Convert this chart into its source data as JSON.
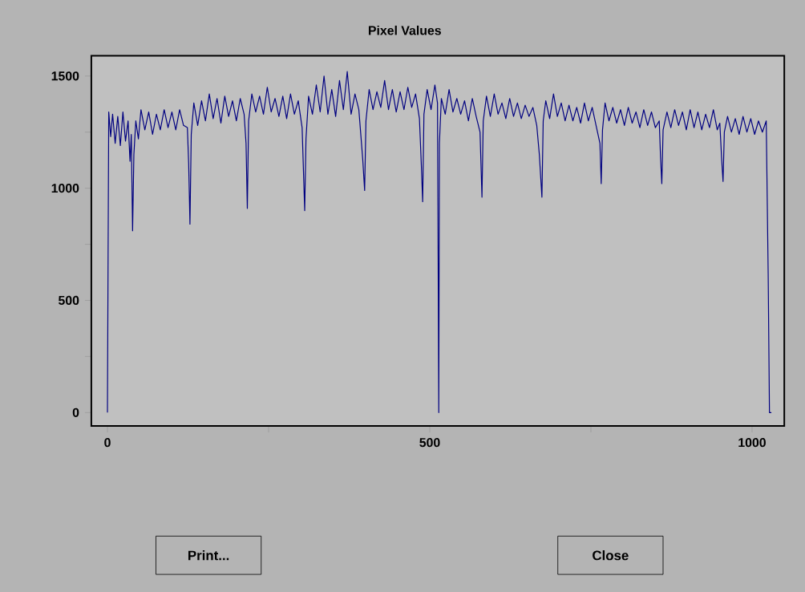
{
  "chart_data": {
    "type": "line",
    "title": "Pixel Values",
    "x": [
      0,
      1,
      2,
      5,
      8,
      12,
      16,
      20,
      24,
      28,
      32,
      35,
      37,
      39,
      41,
      44,
      48,
      52,
      58,
      64,
      70,
      76,
      82,
      88,
      94,
      100,
      106,
      112,
      118,
      124,
      126,
      128,
      130,
      134,
      140,
      146,
      152,
      158,
      164,
      170,
      176,
      182,
      188,
      194,
      200,
      206,
      212,
      215,
      217,
      219,
      224,
      230,
      236,
      242,
      248,
      254,
      260,
      266,
      272,
      278,
      284,
      290,
      296,
      302,
      306,
      308,
      312,
      318,
      324,
      330,
      336,
      342,
      348,
      354,
      360,
      366,
      372,
      378,
      384,
      390,
      396,
      399,
      401,
      406,
      412,
      418,
      424,
      430,
      436,
      442,
      448,
      454,
      460,
      466,
      472,
      478,
      484,
      487,
      489,
      491,
      496,
      502,
      508,
      512,
      513,
      514,
      515,
      518,
      524,
      530,
      536,
      542,
      548,
      554,
      560,
      566,
      572,
      578,
      581,
      583,
      588,
      594,
      600,
      606,
      612,
      618,
      624,
      630,
      636,
      642,
      648,
      654,
      660,
      666,
      670,
      674,
      676,
      680,
      686,
      692,
      698,
      704,
      710,
      716,
      722,
      728,
      734,
      740,
      746,
      752,
      758,
      764,
      766,
      768,
      772,
      778,
      784,
      790,
      796,
      802,
      808,
      814,
      820,
      826,
      832,
      838,
      844,
      850,
      856,
      858,
      860,
      862,
      868,
      874,
      880,
      886,
      892,
      898,
      904,
      910,
      916,
      922,
      928,
      934,
      940,
      946,
      950,
      953,
      955,
      957,
      962,
      968,
      974,
      980,
      986,
      992,
      998,
      1004,
      1010,
      1016,
      1022,
      1025,
      1027,
      1030
    ],
    "series": [
      {
        "color": "#000080",
        "values": [
          0,
          700,
          1340,
          1230,
          1330,
          1200,
          1320,
          1190,
          1340,
          1210,
          1300,
          1120,
          1240,
          810,
          1150,
          1300,
          1220,
          1350,
          1260,
          1340,
          1240,
          1330,
          1260,
          1350,
          1270,
          1340,
          1260,
          1350,
          1280,
          1270,
          1110,
          840,
          1240,
          1380,
          1280,
          1390,
          1300,
          1420,
          1310,
          1400,
          1290,
          1410,
          1320,
          1390,
          1300,
          1400,
          1330,
          1200,
          910,
          1300,
          1420,
          1340,
          1410,
          1330,
          1450,
          1340,
          1400,
          1320,
          1410,
          1310,
          1420,
          1330,
          1390,
          1270,
          900,
          1220,
          1410,
          1330,
          1460,
          1340,
          1500,
          1330,
          1440,
          1320,
          1480,
          1350,
          1520,
          1330,
          1420,
          1350,
          1130,
          990,
          1300,
          1440,
          1350,
          1430,
          1360,
          1480,
          1350,
          1440,
          1340,
          1430,
          1350,
          1450,
          1360,
          1420,
          1310,
          1100,
          940,
          1330,
          1440,
          1350,
          1460,
          1380,
          700,
          0,
          1200,
          1400,
          1330,
          1440,
          1340,
          1400,
          1330,
          1390,
          1300,
          1400,
          1320,
          1250,
          960,
          1300,
          1410,
          1320,
          1420,
          1330,
          1380,
          1310,
          1400,
          1320,
          1380,
          1310,
          1370,
          1320,
          1360,
          1280,
          1150,
          960,
          1300,
          1390,
          1310,
          1420,
          1320,
          1380,
          1300,
          1370,
          1300,
          1360,
          1290,
          1380,
          1300,
          1360,
          1280,
          1200,
          1020,
          1260,
          1380,
          1300,
          1360,
          1290,
          1350,
          1280,
          1360,
          1290,
          1340,
          1270,
          1350,
          1280,
          1340,
          1270,
          1300,
          1140,
          1020,
          1260,
          1340,
          1270,
          1350,
          1280,
          1340,
          1260,
          1350,
          1270,
          1340,
          1260,
          1330,
          1270,
          1350,
          1260,
          1290,
          1120,
          1030,
          1250,
          1320,
          1250,
          1310,
          1240,
          1320,
          1250,
          1310,
          1240,
          1300,
          1250,
          1300,
          620,
          0,
          0
        ]
      }
    ],
    "xlim": [
      -25,
      1050
    ],
    "ylim": [
      -60,
      1590
    ],
    "xticks": [
      0,
      {
        "value": 250,
        "label": null
      },
      500,
      {
        "value": 750,
        "label": null
      },
      1000
    ],
    "yticks": [
      0,
      {
        "value": 250,
        "label": null
      },
      500,
      {
        "value": 750,
        "label": null
      },
      1000,
      {
        "value": 1250,
        "label": null
      },
      1500
    ],
    "annotations": [
      "Print...",
      "Close"
    ]
  }
}
